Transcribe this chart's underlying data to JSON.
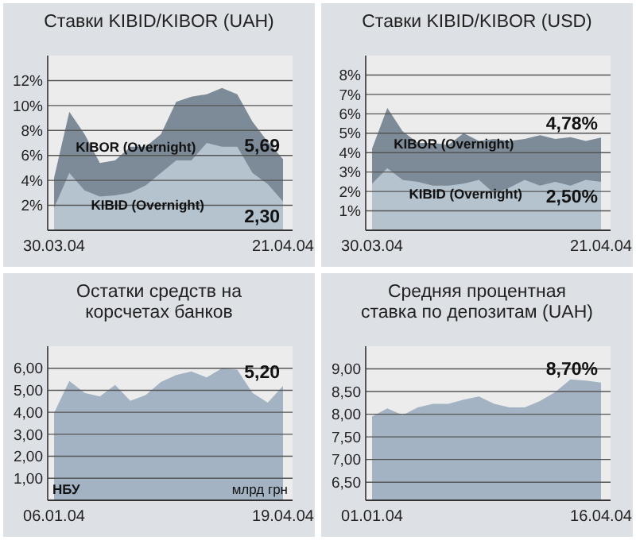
{
  "chart_data": [
    {
      "type": "area",
      "title": "Ставки KIBID/KIBOR (UAH)",
      "categories": [
        "30.03.04",
        null,
        null,
        null,
        null,
        null,
        null,
        null,
        null,
        null,
        null,
        null,
        null,
        null,
        null,
        "21.04.04"
      ],
      "series": [
        {
          "name": "KIBOR (Overnight)",
          "color": "#7d8a97",
          "values": [
            4.2,
            9.5,
            7.7,
            5.4,
            5.6,
            6.7,
            6.7,
            7.7,
            10.3,
            10.7,
            10.9,
            11.4,
            10.9,
            8.7,
            7.1,
            5.69
          ],
          "value_labels": [
            null,
            null,
            null,
            null,
            null,
            null,
            null,
            null,
            null,
            null,
            null,
            null,
            null,
            null,
            null,
            "5,69"
          ]
        },
        {
          "name": "KIBID (Overnight)",
          "color": "#b5c3cf",
          "values": [
            1.8,
            4.6,
            3.2,
            2.7,
            2.8,
            3.0,
            3.6,
            4.6,
            5.6,
            5.6,
            7.0,
            6.7,
            6.7,
            4.6,
            3.7,
            2.3
          ],
          "value_labels": [
            null,
            null,
            null,
            null,
            null,
            null,
            null,
            null,
            null,
            null,
            null,
            null,
            null,
            null,
            null,
            "2,30"
          ]
        }
      ],
      "ylim": [
        0,
        14
      ],
      "yticks": [
        {
          "value": 2,
          "label": "2%"
        },
        {
          "value": 4,
          "label": "4%"
        },
        {
          "value": 6,
          "label": "6%"
        },
        {
          "value": 8,
          "label": "8%"
        },
        {
          "value": 10,
          "label": "10%"
        },
        {
          "value": 12,
          "label": "12%"
        }
      ],
      "grid": "y"
    },
    {
      "type": "area",
      "title": "Ставки KIBID/KIBOR (USD)",
      "categories": [
        "30.03.04",
        null,
        null,
        null,
        null,
        null,
        null,
        null,
        null,
        null,
        null,
        null,
        null,
        null,
        null,
        "21.04.04"
      ],
      "series": [
        {
          "name": "KIBOR (Overnight)",
          "color": "#7d8a97",
          "values": [
            4.2,
            6.3,
            5.1,
            4.5,
            4.5,
            4.4,
            5.0,
            4.6,
            4.7,
            4.6,
            4.7,
            4.9,
            4.7,
            4.8,
            4.6,
            4.78
          ],
          "value_labels": [
            null,
            null,
            null,
            null,
            null,
            null,
            null,
            null,
            null,
            null,
            null,
            null,
            null,
            null,
            null,
            "4,78%"
          ]
        },
        {
          "name": "KIBID (Overnight)",
          "color": "#b5c3cf",
          "values": [
            2.4,
            3.2,
            2.6,
            2.5,
            2.3,
            2.3,
            2.4,
            2.6,
            1.9,
            2.2,
            2.6,
            2.3,
            2.5,
            2.3,
            2.6,
            2.5
          ],
          "value_labels": [
            null,
            null,
            null,
            null,
            null,
            null,
            null,
            null,
            null,
            null,
            null,
            null,
            null,
            null,
            null,
            "2,50%"
          ]
        }
      ],
      "ylim": [
        0,
        9
      ],
      "yticks": [
        {
          "value": 1,
          "label": "1%"
        },
        {
          "value": 2,
          "label": "2%"
        },
        {
          "value": 3,
          "label": "3%"
        },
        {
          "value": 4,
          "label": "4%"
        },
        {
          "value": 5,
          "label": "5%"
        },
        {
          "value": 6,
          "label": "6%"
        },
        {
          "value": 7,
          "label": "7%"
        },
        {
          "value": 8,
          "label": "8%"
        }
      ],
      "grid": "y"
    },
    {
      "type": "area",
      "title": "Остатки средств на корсчетах банков",
      "categories": [
        "06.01.04",
        null,
        null,
        null,
        null,
        null,
        null,
        null,
        null,
        null,
        null,
        null,
        null,
        null,
        null,
        "19.04.04"
      ],
      "series": [
        {
          "color": "#a3b3c3",
          "values": [
            3.97,
            5.42,
            4.88,
            4.72,
            5.24,
            4.52,
            4.78,
            5.38,
            5.69,
            5.85,
            5.58,
            6.0,
            5.94,
            4.88,
            4.44,
            5.2
          ],
          "value_labels": [
            null,
            null,
            null,
            null,
            null,
            null,
            null,
            null,
            null,
            null,
            null,
            null,
            null,
            null,
            null,
            "5,20"
          ]
        }
      ],
      "ylim": [
        0,
        7
      ],
      "yticks": [
        {
          "value": 1,
          "label": "1,00"
        },
        {
          "value": 2,
          "label": "2,00"
        },
        {
          "value": 3,
          "label": "3,00"
        },
        {
          "value": 4,
          "label": "4,00"
        },
        {
          "value": 5,
          "label": "5,00"
        },
        {
          "value": 6,
          "label": "6,00"
        }
      ],
      "grid": "y",
      "annotations": [
        "НБУ",
        "млрд грн"
      ]
    },
    {
      "type": "area",
      "title": "Средняя процентная ставка по депозитам (UAH)",
      "categories": [
        "01.01.04",
        null,
        null,
        null,
        null,
        null,
        null,
        null,
        null,
        null,
        null,
        null,
        null,
        null,
        null,
        "16.04.04"
      ],
      "series": [
        {
          "color": "#a3b3c3",
          "values": [
            7.95,
            8.13,
            7.98,
            8.15,
            8.23,
            8.23,
            8.32,
            8.39,
            8.23,
            8.15,
            8.15,
            8.29,
            8.49,
            8.77,
            8.74,
            8.7
          ],
          "value_labels": [
            null,
            null,
            null,
            null,
            null,
            null,
            null,
            null,
            null,
            null,
            null,
            null,
            null,
            null,
            null,
            "8,70%"
          ]
        }
      ],
      "ylim": [
        6.1,
        9.5
      ],
      "yticks": [
        {
          "value": 6.5,
          "label": "6,50"
        },
        {
          "value": 7,
          "label": "7,00"
        },
        {
          "value": 7.5,
          "label": "7,50"
        },
        {
          "value": 8,
          "label": "8,00"
        },
        {
          "value": 8.5,
          "label": "8,50"
        },
        {
          "value": 9,
          "label": "9,00"
        }
      ],
      "grid": "y"
    }
  ]
}
